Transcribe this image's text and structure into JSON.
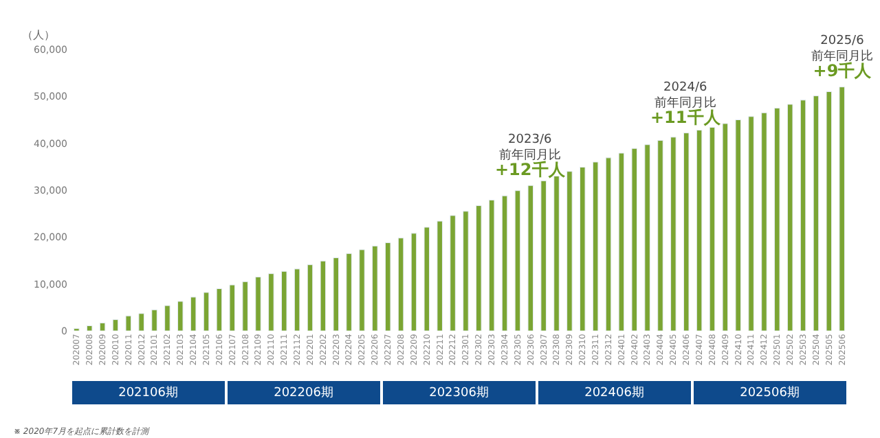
{
  "chart_data": {
    "type": "bar",
    "ylabel": "（人）",
    "categories": [
      "202007",
      "202008",
      "202009",
      "202010",
      "202011",
      "202012",
      "202101",
      "202102",
      "202103",
      "202104",
      "202105",
      "202106",
      "202107",
      "202108",
      "202109",
      "202110",
      "202111",
      "202112",
      "202201",
      "202202",
      "202203",
      "202204",
      "202205",
      "202206",
      "202207",
      "202208",
      "202209",
      "202210",
      "202211",
      "202212",
      "202301",
      "202302",
      "202303",
      "202304",
      "202305",
      "202306",
      "202307",
      "202308",
      "202309",
      "202310",
      "202311",
      "202312",
      "202401",
      "202402",
      "202403",
      "202404",
      "202405",
      "202406",
      "202407",
      "202408",
      "202409",
      "202410",
      "202411",
      "202412",
      "202501",
      "202502",
      "202503",
      "202504",
      "202505",
      "202506"
    ],
    "values": [
      500,
      1100,
      1700,
      2400,
      3200,
      3700,
      4500,
      5400,
      6300,
      7200,
      8200,
      9000,
      9800,
      10500,
      11500,
      12200,
      12700,
      13200,
      14100,
      14900,
      15600,
      16500,
      17300,
      18100,
      18800,
      19800,
      20800,
      22100,
      23400,
      24600,
      25500,
      26700,
      27900,
      28800,
      29900,
      31000,
      32000,
      33000,
      34000,
      34900,
      36000,
      36900,
      37900,
      38900,
      39700,
      40600,
      41300,
      42200,
      42800,
      43400,
      44200,
      45000,
      45700,
      46500,
      47500,
      48300,
      49200,
      50100,
      51000,
      52000
    ],
    "color": "#7ba533",
    "ylim": [
      0,
      60000
    ],
    "yticks": [
      0,
      {
        "value": 10000,
        "label": "10,000"
      },
      {
        "value": 20000,
        "label": "20,000"
      },
      {
        "value": 30000,
        "label": "30,000"
      },
      {
        "value": 40000,
        "label": "40,000"
      },
      {
        "value": 50000,
        "label": "50,000"
      },
      {
        "value": 60000,
        "label": "60,000"
      }
    ],
    "legend": false,
    "annotations": [
      {
        "text": "2023/6\n前年同月比\n+12千人",
        "x": "202306",
        "y": 31000
      },
      {
        "text": "2024/6\n前年同月比\n+11千人",
        "x": "202406",
        "y": 42200
      },
      {
        "text": "2025/6\n前年同月比\n+9千人",
        "x": "202506",
        "y": 52000
      },
      "202106期",
      "202206期",
      "202306期",
      "202406期",
      "202506期",
      "※ 2020年7月を起点に累計数を計測"
    ]
  }
}
